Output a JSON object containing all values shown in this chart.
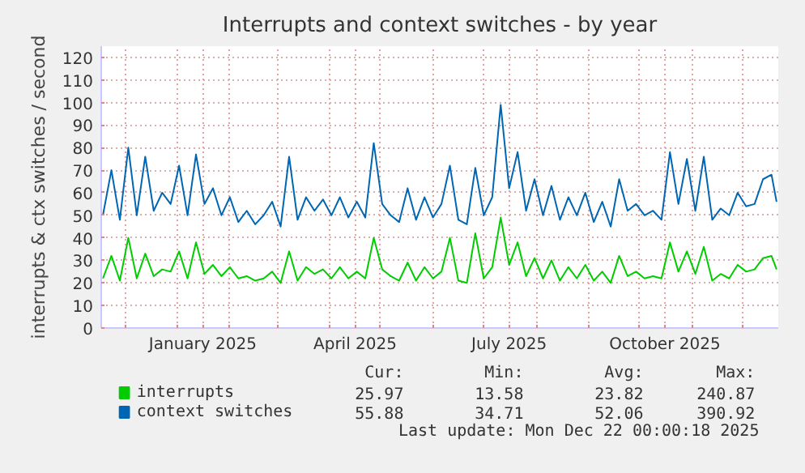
{
  "chart_data": {
    "type": "line",
    "title": "Interrupts and context switches - by year",
    "ylabel": "interrupts & ctx switches / second",
    "x": [
      "2024-11-18",
      "2024-11-23",
      "2024-11-28",
      "2024-12-03",
      "2024-12-08",
      "2024-12-13",
      "2024-12-18",
      "2024-12-23",
      "2024-12-28",
      "2025-01-02",
      "2025-01-07",
      "2025-01-12",
      "2025-01-17",
      "2025-01-22",
      "2025-01-27",
      "2025-02-01",
      "2025-02-06",
      "2025-02-11",
      "2025-02-16",
      "2025-02-21",
      "2025-02-26",
      "2025-03-03",
      "2025-03-08",
      "2025-03-13",
      "2025-03-18",
      "2025-03-23",
      "2025-03-28",
      "2025-04-02",
      "2025-04-07",
      "2025-04-12",
      "2025-04-17",
      "2025-04-22",
      "2025-04-27",
      "2025-05-02",
      "2025-05-07",
      "2025-05-12",
      "2025-05-17",
      "2025-05-22",
      "2025-05-27",
      "2025-06-01",
      "2025-06-06",
      "2025-06-11",
      "2025-06-16",
      "2025-06-21",
      "2025-06-26",
      "2025-07-01",
      "2025-07-06",
      "2025-07-11",
      "2025-07-16",
      "2025-07-21",
      "2025-07-26",
      "2025-07-31",
      "2025-08-05",
      "2025-08-10",
      "2025-08-15",
      "2025-08-20",
      "2025-08-25",
      "2025-08-30",
      "2025-09-04",
      "2025-09-09",
      "2025-09-14",
      "2025-09-19",
      "2025-09-24",
      "2025-09-29",
      "2025-10-04",
      "2025-10-09",
      "2025-10-14",
      "2025-10-19",
      "2025-10-24",
      "2025-10-29",
      "2025-11-03",
      "2025-11-08",
      "2025-11-13",
      "2025-11-18",
      "2025-11-23",
      "2025-11-28",
      "2025-12-03",
      "2025-12-08",
      "2025-12-13",
      "2025-12-18",
      "2025-12-21"
    ],
    "series": [
      {
        "name": "interrupts",
        "color": "#00cc00",
        "values": [
          22,
          32,
          21,
          40,
          22,
          33,
          23,
          26,
          25,
          34,
          22,
          38,
          24,
          28,
          23,
          27,
          22,
          23,
          21,
          22,
          25,
          20,
          34,
          21,
          27,
          24,
          26,
          22,
          27,
          22,
          25,
          22,
          40,
          26,
          23,
          21,
          29,
          21,
          27,
          22,
          25,
          40,
          21,
          20,
          42,
          22,
          27,
          49,
          28,
          38,
          23,
          31,
          22,
          30,
          21,
          27,
          22,
          28,
          21,
          25,
          20,
          32,
          23,
          25,
          22,
          23,
          22,
          38,
          25,
          34,
          24,
          36,
          21,
          24,
          22,
          28,
          25,
          26,
          31,
          32,
          26
        ]
      },
      {
        "name": "context switches",
        "color": "#0066b3",
        "values": [
          50,
          70,
          48,
          80,
          50,
          76,
          52,
          60,
          55,
          72,
          50,
          77,
          55,
          62,
          50,
          58,
          47,
          52,
          46,
          50,
          56,
          45,
          76,
          48,
          58,
          52,
          57,
          50,
          58,
          49,
          56,
          49,
          82,
          55,
          50,
          47,
          62,
          48,
          58,
          49,
          55,
          72,
          48,
          46,
          71,
          50,
          58,
          99,
          62,
          78,
          52,
          66,
          50,
          63,
          48,
          58,
          50,
          60,
          47,
          56,
          45,
          66,
          52,
          55,
          50,
          52,
          48,
          78,
          55,
          75,
          52,
          76,
          48,
          53,
          50,
          60,
          54,
          55,
          66,
          68,
          56
        ]
      }
    ],
    "xlim": [
      "2024-11-17",
      "2025-12-22"
    ],
    "xticks": [
      {
        "value": "2024-12-01",
        "label": null
      },
      {
        "value": "2025-01-01",
        "label": null
      },
      {
        "value": "2025-01-16",
        "label": "January 2025"
      },
      {
        "value": "2025-02-01",
        "label": null
      },
      {
        "value": "2025-03-01",
        "label": null
      },
      {
        "value": "2025-04-01",
        "label": null
      },
      {
        "value": "2025-04-16",
        "label": "April 2025"
      },
      {
        "value": "2025-05-01",
        "label": null
      },
      {
        "value": "2025-06-01",
        "label": null
      },
      {
        "value": "2025-07-01",
        "label": null
      },
      {
        "value": "2025-07-16",
        "label": "July 2025"
      },
      {
        "value": "2025-08-01",
        "label": null
      },
      {
        "value": "2025-09-01",
        "label": null
      },
      {
        "value": "2025-10-01",
        "label": null
      },
      {
        "value": "2025-10-16",
        "label": "October 2025"
      },
      {
        "value": "2025-11-01",
        "label": null
      },
      {
        "value": "2025-12-01",
        "label": null
      }
    ],
    "ylim": [
      0,
      125
    ],
    "yticks": [
      0,
      10,
      20,
      30,
      40,
      50,
      60,
      70,
      80,
      90,
      100,
      110,
      120
    ],
    "grid": true,
    "legend": "bottom",
    "marker": "none",
    "line_style": "solid",
    "annotations": [
      "Cur:",
      "Min:",
      "Avg:",
      "Max:",
      "25.97",
      "13.58",
      "23.82",
      "240.87",
      "55.88",
      "34.71",
      "52.06",
      "390.92",
      "Last update: Mon Dec 22 00:00:18 2025"
    ]
  }
}
